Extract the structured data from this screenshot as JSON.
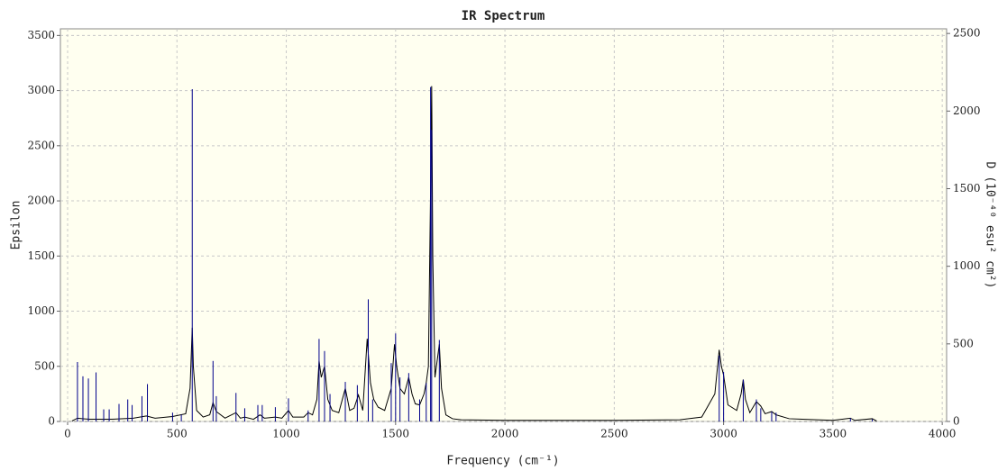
{
  "chart_data": {
    "type": "line",
    "title": "IR Spectrum",
    "x_label": "Frequency (cm⁻¹)",
    "y_label": "Epsilon",
    "y2_label": "D (10⁻⁴⁰ esu² cm²)",
    "xlim": [
      -33,
      4020
    ],
    "ylim": [
      0,
      3560
    ],
    "y2lim": [
      0,
      2530
    ],
    "xticks": [
      0,
      500,
      1000,
      1500,
      2000,
      2500,
      3000,
      3500,
      4000
    ],
    "yticks": [
      0,
      500,
      1000,
      1500,
      2000,
      2500,
      3000,
      3500
    ],
    "y2ticks": [
      0,
      500,
      1000,
      1500,
      2000,
      2500
    ],
    "grid": true,
    "background": "#fffff0",
    "series": [
      {
        "color": "#000000",
        "style": "line",
        "x": [
          20,
          45,
          70,
          100,
          200,
          300,
          360,
          400,
          480,
          540,
          560,
          570,
          575,
          590,
          620,
          650,
          665,
          680,
          720,
          770,
          790,
          810,
          850,
          880,
          900,
          950,
          980,
          1010,
          1030,
          1080,
          1100,
          1120,
          1140,
          1150,
          1160,
          1175,
          1190,
          1210,
          1240,
          1270,
          1290,
          1310,
          1330,
          1350,
          1370,
          1385,
          1400,
          1420,
          1450,
          1480,
          1495,
          1505,
          1520,
          1540,
          1560,
          1575,
          1590,
          1610,
          1630,
          1640,
          1650,
          1660,
          1665,
          1670,
          1680,
          1700,
          1710,
          1730,
          1760,
          1800,
          2000,
          2500,
          2800,
          2900,
          2960,
          2980,
          2990,
          3000,
          3020,
          3060,
          3080,
          3090,
          3100,
          3120,
          3150,
          3170,
          3190,
          3220,
          3240,
          3300,
          3500,
          3580,
          3600,
          3680,
          3700
        ],
        "values": [
          5,
          30,
          25,
          20,
          20,
          30,
          50,
          30,
          45,
          70,
          300,
          850,
          500,
          100,
          40,
          60,
          170,
          90,
          30,
          80,
          30,
          40,
          20,
          60,
          30,
          40,
          30,
          100,
          40,
          40,
          80,
          60,
          200,
          550,
          400,
          500,
          200,
          100,
          80,
          300,
          100,
          120,
          240,
          100,
          750,
          350,
          200,
          130,
          100,
          300,
          700,
          500,
          300,
          250,
          400,
          250,
          160,
          150,
          250,
          350,
          500,
          2100,
          3040,
          1500,
          400,
          700,
          300,
          60,
          25,
          15,
          10,
          10,
          15,
          40,
          250,
          650,
          500,
          420,
          150,
          100,
          250,
          380,
          200,
          80,
          180,
          140,
          70,
          90,
          60,
          25,
          10,
          30,
          10,
          25,
          5
        ]
      },
      {
        "color": "#00008b",
        "style": "sticks",
        "axis": "y2",
        "x": [
          45,
          70,
          95,
          130,
          165,
          190,
          235,
          275,
          295,
          340,
          365,
          480,
          520,
          570,
          665,
          680,
          770,
          810,
          870,
          890,
          950,
          1010,
          1100,
          1150,
          1175,
          1200,
          1270,
          1325,
          1375,
          1395,
          1480,
          1500,
          1520,
          1560,
          1610,
          1640,
          1660,
          1665,
          1700,
          2980,
          3000,
          3090,
          3150,
          3170,
          3220,
          3240,
          3580,
          3680
        ],
        "values": [
          383,
          291,
          277,
          316,
          78,
          78,
          113,
          142,
          106,
          163,
          241,
          57,
          43,
          2141,
          390,
          163,
          184,
          85,
          106,
          106,
          92,
          149,
          71,
          532,
          454,
          177,
          255,
          234,
          787,
          142,
          376,
          567,
          284,
          312,
          142,
          248,
          2155,
          1879,
          525,
          425,
          319,
          269,
          142,
          85,
          64,
          57,
          21,
          14
        ]
      }
    ]
  }
}
